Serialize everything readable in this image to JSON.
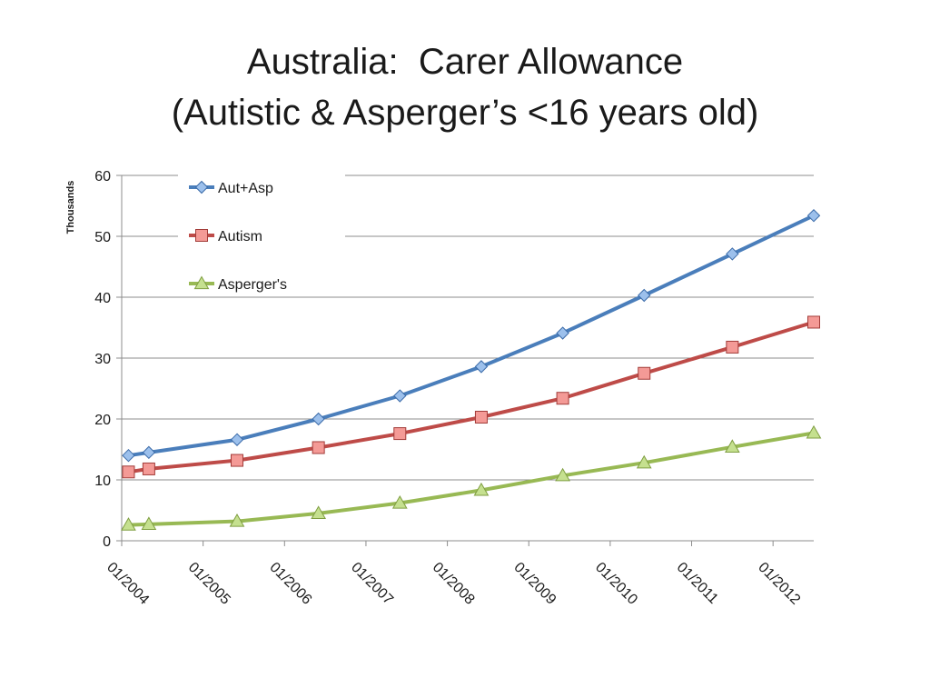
{
  "chart_data": {
    "type": "line",
    "title": "Australia:  Carer Allowance",
    "subtitle": "(Autistic & Asperger’s <16 years old)",
    "ylabel": "Thousands",
    "xlabel": "",
    "ylim": [
      0,
      60
    ],
    "yticks": [
      "0",
      "10",
      "20",
      "30",
      "40",
      "50",
      "60"
    ],
    "xlim": [
      "2004-01",
      "2012-07"
    ],
    "xticks": [
      "01/2004",
      "01/2005",
      "01/2006",
      "01/2007",
      "01/2008",
      "01/2009",
      "01/2010",
      "01/2011",
      "01/2012"
    ],
    "grid": true,
    "legend_position": "top-left",
    "x": [
      "2004-02",
      "2004-05",
      "2005-06",
      "2006-06",
      "2007-06",
      "2008-06",
      "2009-06",
      "2010-06",
      "2011-07",
      "2012-07"
    ],
    "series": [
      {
        "name": "Aut+Asp",
        "color": "#4a7ebb",
        "marker": "diamond",
        "values": [
          14.0,
          14.5,
          16.6,
          20.0,
          23.8,
          28.6,
          34.1,
          40.3,
          47.1,
          53.4
        ]
      },
      {
        "name": "Autism",
        "color": "#be4b48",
        "marker": "square",
        "values": [
          11.3,
          11.8,
          13.2,
          15.3,
          17.6,
          20.3,
          23.4,
          27.5,
          31.8,
          35.9
        ]
      },
      {
        "name": "Asperger's",
        "color": "#98b954",
        "marker": "triangle",
        "values": [
          2.6,
          2.7,
          3.2,
          4.5,
          6.2,
          8.3,
          10.7,
          12.8,
          15.4,
          17.7
        ]
      }
    ]
  }
}
